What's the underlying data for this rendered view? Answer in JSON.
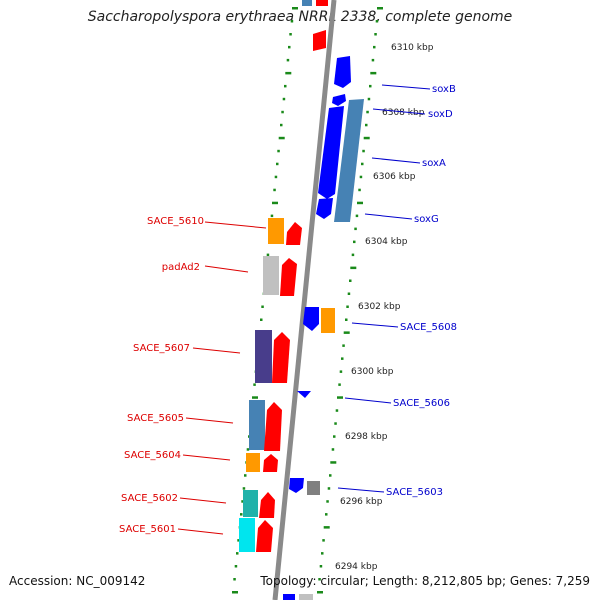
{
  "title": "Saccharopolyspora erythraea NRRL 2338, complete genome",
  "footer": {
    "accession": "Accession: NC_009142",
    "topology": "Topology: circular; Length: 8,212,805 bp; Genes: 7,259"
  },
  "colors": {
    "backbone": "#8a8a8a",
    "tick_green": "#1a8a1a",
    "forward_label": "#dd0000",
    "reverse_label": "#0000cc",
    "red": "#ff0000",
    "orange": "#ff9900",
    "blue": "#0000ff",
    "steel": "#4682b4",
    "silver": "#c0c0c0",
    "purple": "#483d8b",
    "cyan": "#00e5ee",
    "teal": "#20b2aa",
    "gray": "#808080"
  },
  "scale_ticks": [
    "6310 kbp",
    "6308 kbp",
    "6306 kbp",
    "6304 kbp",
    "6302 kbp",
    "6300 kbp",
    "6298 kbp",
    "6296 kbp",
    "6294 kbp"
  ],
  "labels_left": [
    "SACE_5610",
    "padAd2",
    "SACE_5607",
    "SACE_5605",
    "SACE_5604",
    "SACE_5602",
    "SACE_5601"
  ],
  "labels_right": [
    "soxB",
    "soxD",
    "soxA",
    "soxG",
    "SACE_5608",
    "SACE_5606",
    "SACE_5603"
  ]
}
